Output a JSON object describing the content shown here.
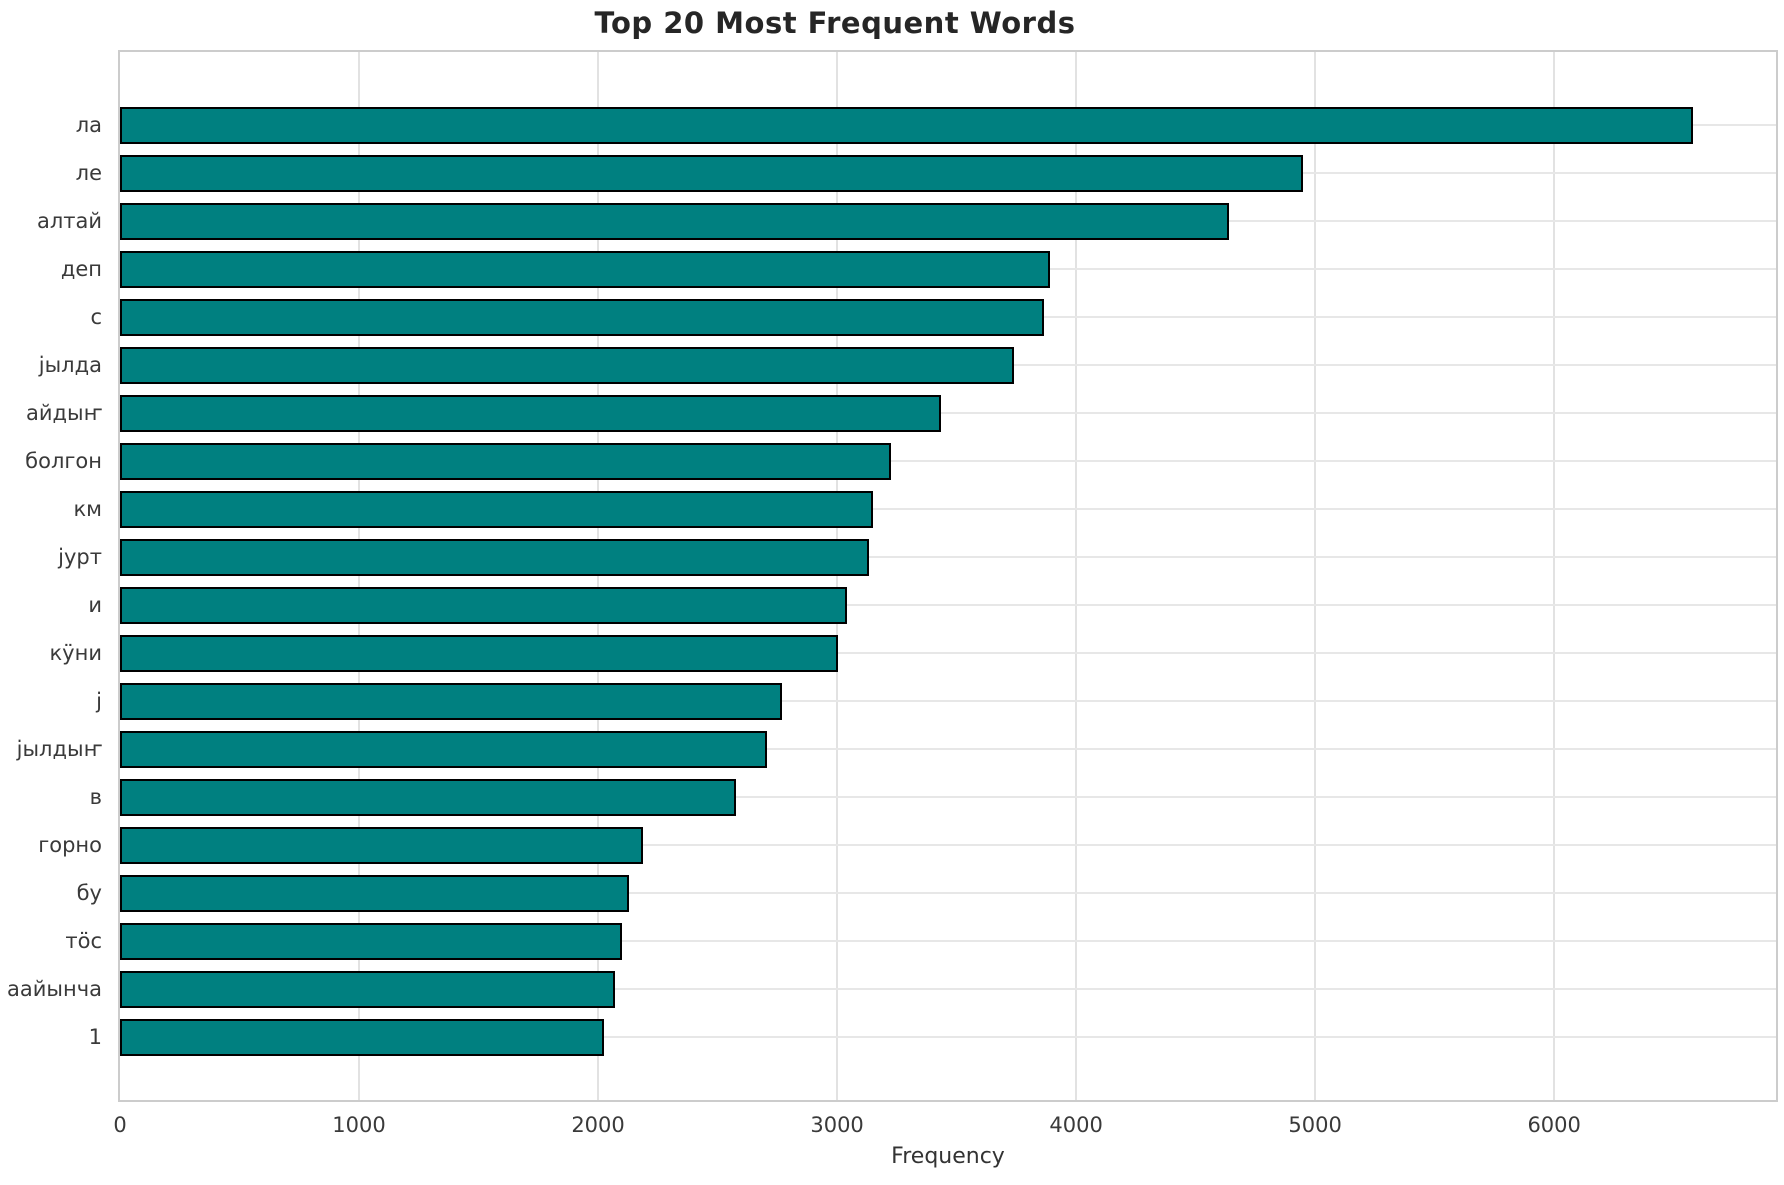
{
  "chart_data": {
    "type": "bar",
    "orientation": "horizontal",
    "title": "Top 20 Most Frequent Words",
    "xlabel": "Frequency",
    "ylabel": "",
    "categories": [
      "ла",
      "ле",
      "алтай",
      "деп",
      "с",
      "јылда",
      "айдыҥ",
      "болгон",
      "км",
      "јурт",
      "и",
      "кӱни",
      "ј",
      "јылдыҥ",
      "в",
      "горно",
      "бу",
      "тӧс",
      "аайынча",
      "1"
    ],
    "values": [
      6580,
      4950,
      4640,
      3890,
      3865,
      3740,
      3435,
      3225,
      3150,
      3135,
      3040,
      3005,
      2770,
      2705,
      2575,
      2190,
      2130,
      2100,
      2070,
      2025
    ],
    "xticks": [
      0,
      1000,
      2000,
      3000,
      4000,
      5000,
      6000
    ],
    "xlim": [
      0,
      6928
    ],
    "grid": true,
    "legend": false,
    "bar_color": "#008080",
    "bar_edge_color": "#000000"
  }
}
